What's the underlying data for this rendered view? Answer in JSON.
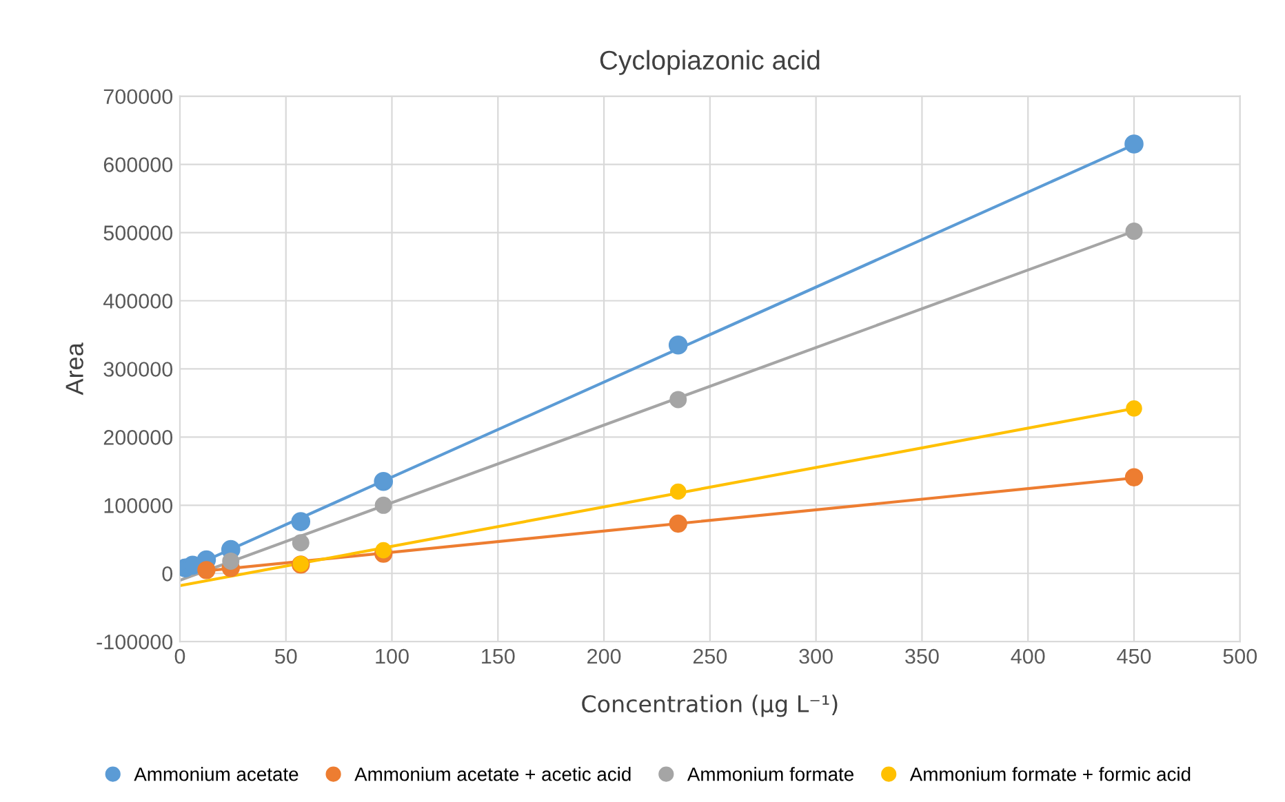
{
  "chart_data": {
    "type": "scatter",
    "title": "Cyclopiazonic acid",
    "xlabel": "Concentration (µg L⁻¹)",
    "ylabel": "Area",
    "xlim": [
      0,
      500
    ],
    "xticks": [
      0,
      50,
      100,
      150,
      200,
      250,
      300,
      350,
      400,
      450,
      500
    ],
    "ylim": [
      -100000,
      700000
    ],
    "yticks": [
      -100000,
      0,
      100000,
      200000,
      300000,
      400000,
      500000,
      600000,
      700000
    ],
    "grid": true,
    "legend": "bottom",
    "marker": "circle",
    "series": [
      {
        "name": "Ammonium acetate",
        "color": "#5b9bd5",
        "x": [
          2.5,
          6,
          12.5,
          24,
          57,
          96,
          235,
          450
        ],
        "values": [
          8000,
          12000,
          20000,
          35000,
          76000,
          135000,
          335000,
          630000
        ]
      },
      {
        "name": "Ammonium acetate + acetic acid",
        "color": "#ed7d31",
        "x": [
          12.5,
          24,
          57,
          96,
          235,
          450
        ],
        "values": [
          5000,
          8000,
          13000,
          29000,
          73000,
          141000
        ]
      },
      {
        "name": "Ammonium formate",
        "color": "#a5a5a5",
        "x": [
          24,
          57,
          96,
          235,
          450
        ],
        "values": [
          18000,
          45000,
          100000,
          255000,
          502000
        ]
      },
      {
        "name": "Ammonium formate + formic acid",
        "color": "#ffc000",
        "x": [
          57,
          96,
          235,
          450
        ],
        "values": [
          14000,
          34000,
          120000,
          242000
        ]
      },
      {
        "type": "line",
        "marker": "none",
        "color": "#5b9bd5",
        "x": [
          0,
          450
        ],
        "values": [
          2000,
          629000
        ]
      },
      {
        "type": "line",
        "marker": "none",
        "color": "#ed7d31",
        "x": [
          0,
          450
        ],
        "values": [
          0,
          140000
        ]
      },
      {
        "type": "line",
        "marker": "none",
        "color": "#a5a5a5",
        "x": [
          0,
          450
        ],
        "values": [
          -10000,
          502000
        ]
      },
      {
        "type": "line",
        "marker": "none",
        "color": "#ffc000",
        "x": [
          0,
          450
        ],
        "values": [
          -18000,
          242000
        ]
      }
    ]
  }
}
